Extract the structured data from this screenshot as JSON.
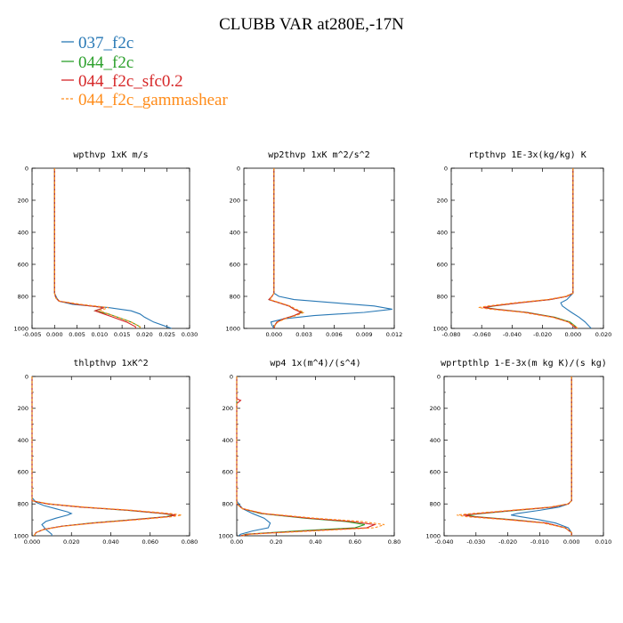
{
  "figure_title": "CLUBB VAR at280E,-17N",
  "legend": [
    {
      "label": "037_f2c",
      "color": "#2878b5",
      "dash": "solid"
    },
    {
      "label": "044_f2c",
      "color": "#2ca02c",
      "dash": "solid"
    },
    {
      "label": "044_f2c_sfc0.2",
      "color": "#d62728",
      "dash": "solid"
    },
    {
      "label": "044_f2c_gammashear",
      "color": "#ff8c1a",
      "dash": "dashed"
    }
  ],
  "chart_data": [
    {
      "type": "line",
      "title": "wpthvp  1xK m/s",
      "xlim": [
        -0.005,
        0.03
      ],
      "ylim": [
        1000,
        0
      ],
      "xticks": [
        "-0.005",
        "0.000",
        "0.005",
        "0.010",
        "0.015",
        "0.020",
        "0.025",
        "0.030"
      ],
      "yticks": [
        "0",
        "200",
        "400",
        "600",
        "800",
        "1000"
      ],
      "series": [
        {
          "name": "037_f2c",
          "y": [
            0,
            780,
            810,
            830,
            850,
            870,
            890,
            910,
            930,
            960,
            990,
            1000
          ],
          "x": [
            0.0,
            0.0,
            0.0005,
            0.001,
            0.004,
            0.012,
            0.017,
            0.019,
            0.02,
            0.022,
            0.025,
            0.026
          ]
        },
        {
          "name": "044_f2c",
          "y": [
            0,
            780,
            810,
            830,
            850,
            870,
            890,
            910,
            930,
            960,
            990,
            1000
          ],
          "x": [
            0.0,
            0.0,
            0.0003,
            0.001,
            0.005,
            0.011,
            0.009,
            0.012,
            0.014,
            0.017,
            0.019,
            0.019
          ]
        },
        {
          "name": "044_f2c_sfc0.2",
          "y": [
            0,
            780,
            810,
            830,
            850,
            870,
            890,
            910,
            930,
            960,
            990,
            1000
          ],
          "x": [
            0.0,
            0.0,
            0.0003,
            0.001,
            0.005,
            0.011,
            0.009,
            0.011,
            0.013,
            0.016,
            0.018,
            0.018
          ]
        },
        {
          "name": "044_f2c_gammashear",
          "y": [
            0,
            780,
            810,
            830,
            850,
            870,
            890,
            910,
            930,
            960,
            990,
            1000
          ],
          "x": [
            0.0,
            0.0,
            0.0003,
            0.0012,
            0.006,
            0.012,
            0.01,
            0.012,
            0.014,
            0.017,
            0.019,
            0.019
          ]
        }
      ]
    },
    {
      "type": "line",
      "title": "wp2thvp  1xK m^2/s^2",
      "xlim": [
        -0.003,
        0.012
      ],
      "ylim": [
        1000,
        0
      ],
      "xticks": [
        "0.000",
        "0.003",
        "0.006",
        "0.009",
        "0.012"
      ],
      "yticks": [
        "0",
        "200",
        "400",
        "600",
        "800",
        "1000"
      ],
      "series": [
        {
          "name": "037_f2c",
          "y": [
            0,
            780,
            800,
            820,
            840,
            860,
            880,
            900,
            920,
            940,
            960,
            980,
            1000
          ],
          "x": [
            0.0,
            0.0,
            0.0005,
            0.002,
            0.006,
            0.01,
            0.0118,
            0.009,
            0.004,
            0.001,
            -0.0003,
            -0.0002,
            0.0
          ]
        },
        {
          "name": "044_f2c",
          "y": [
            0,
            780,
            800,
            820,
            840,
            860,
            880,
            900,
            920,
            940,
            960,
            980,
            1000
          ],
          "x": [
            0.0,
            0.0,
            -0.0002,
            -0.0005,
            0.0005,
            0.0015,
            0.002,
            0.0028,
            0.002,
            0.001,
            0.0003,
            0.0001,
            0.0
          ]
        },
        {
          "name": "044_f2c_sfc0.2",
          "y": [
            0,
            780,
            800,
            820,
            840,
            860,
            880,
            900,
            920,
            940,
            960,
            980,
            1000
          ],
          "x": [
            0.0,
            0.0,
            -0.0002,
            -0.0005,
            0.0005,
            0.0015,
            0.002,
            0.0027,
            0.002,
            0.001,
            0.0003,
            0.0001,
            0.0
          ]
        },
        {
          "name": "044_f2c_gammashear",
          "y": [
            0,
            780,
            800,
            820,
            840,
            860,
            880,
            900,
            920,
            940,
            960,
            980,
            1000
          ],
          "x": [
            0.0,
            0.0,
            -0.0002,
            -0.0004,
            0.0006,
            0.0016,
            0.0022,
            0.003,
            0.0022,
            0.0011,
            0.0004,
            0.0001,
            0.0
          ]
        }
      ]
    },
    {
      "type": "line",
      "title": "rtpthvp  1E-3x(kg/kg) K",
      "xlim": [
        -0.08,
        0.02
      ],
      "ylim": [
        1000,
        0
      ],
      "xticks": [
        "-0.080",
        "-0.060",
        "-0.040",
        "-0.020",
        "0.000",
        "0.020"
      ],
      "yticks": [
        "0",
        "200",
        "400",
        "600",
        "800",
        "1000"
      ],
      "series": [
        {
          "name": "037_f2c",
          "y": [
            0,
            780,
            800,
            820,
            840,
            860,
            880,
            900,
            930,
            960,
            990,
            1000
          ],
          "x": [
            0.0,
            0.0,
            -0.002,
            -0.004,
            -0.008,
            -0.007,
            -0.004,
            -0.001,
            0.004,
            0.008,
            0.011,
            0.012
          ]
        },
        {
          "name": "044_f2c",
          "y": [
            0,
            780,
            800,
            820,
            840,
            860,
            870,
            880,
            900,
            930,
            960,
            990,
            1000
          ],
          "x": [
            0.0,
            0.0,
            -0.004,
            -0.015,
            -0.035,
            -0.052,
            -0.058,
            -0.05,
            -0.03,
            -0.012,
            -0.002,
            0.002,
            0.003
          ]
        },
        {
          "name": "044_f2c_sfc0.2",
          "y": [
            0,
            780,
            800,
            820,
            840,
            860,
            870,
            880,
            900,
            930,
            960,
            990,
            1000
          ],
          "x": [
            0.0,
            0.0,
            -0.004,
            -0.015,
            -0.035,
            -0.053,
            -0.059,
            -0.051,
            -0.031,
            -0.013,
            -0.003,
            0.001,
            0.002
          ]
        },
        {
          "name": "044_f2c_gammashear",
          "y": [
            0,
            780,
            800,
            820,
            840,
            860,
            870,
            880,
            900,
            930,
            960,
            990,
            1000
          ],
          "x": [
            0.0,
            0.0,
            -0.005,
            -0.017,
            -0.038,
            -0.056,
            -0.062,
            -0.054,
            -0.033,
            -0.014,
            -0.003,
            0.002,
            0.003
          ]
        }
      ]
    },
    {
      "type": "line",
      "title": "thlpthvp  1xK^2",
      "xlim": [
        0.0,
        0.08
      ],
      "ylim": [
        1000,
        0
      ],
      "xticks": [
        "0.000",
        "0.020",
        "0.040",
        "0.060",
        "0.080"
      ],
      "yticks": [
        "0",
        "200",
        "400",
        "600",
        "800",
        "1000"
      ],
      "series": [
        {
          "name": "037_f2c",
          "y": [
            0,
            760,
            790,
            810,
            830,
            850,
            860,
            870,
            890,
            910,
            930,
            960,
            990,
            1000
          ],
          "x": [
            0.0,
            0.0,
            0.002,
            0.006,
            0.012,
            0.018,
            0.02,
            0.018,
            0.012,
            0.007,
            0.005,
            0.007,
            0.01,
            0.01
          ]
        },
        {
          "name": "044_f2c",
          "y": [
            0,
            780,
            800,
            820,
            840,
            860,
            870,
            880,
            900,
            920,
            940,
            960,
            980,
            1000
          ],
          "x": [
            0.0,
            0.0,
            0.008,
            0.025,
            0.048,
            0.066,
            0.072,
            0.068,
            0.05,
            0.03,
            0.015,
            0.006,
            0.002,
            0.001
          ]
        },
        {
          "name": "044_f2c_sfc0.2",
          "y": [
            0,
            780,
            800,
            820,
            840,
            860,
            870,
            880,
            900,
            920,
            940,
            960,
            980,
            1000
          ],
          "x": [
            0.0,
            0.0,
            0.008,
            0.025,
            0.049,
            0.067,
            0.073,
            0.069,
            0.051,
            0.031,
            0.015,
            0.006,
            0.002,
            0.001
          ]
        },
        {
          "name": "044_f2c_gammashear",
          "y": [
            0,
            780,
            800,
            820,
            840,
            860,
            870,
            880,
            900,
            920,
            940,
            960,
            980,
            1000
          ],
          "x": [
            0.0,
            0.0,
            0.009,
            0.027,
            0.051,
            0.07,
            0.076,
            0.071,
            0.053,
            0.032,
            0.016,
            0.006,
            0.002,
            0.001
          ]
        }
      ]
    },
    {
      "type": "line",
      "title": "wp4  1x(m^4)/(s^4)",
      "xlim": [
        0.0,
        0.8
      ],
      "ylim": [
        1000,
        0
      ],
      "xticks": [
        "0.00",
        "0.20",
        "0.40",
        "0.60",
        "0.80"
      ],
      "yticks": [
        "0",
        "200",
        "400",
        "600",
        "800",
        "1000"
      ],
      "series": [
        {
          "name": "037_f2c",
          "y": [
            0,
            780,
            800,
            830,
            860,
            890,
            920,
            950,
            970,
            990,
            1000
          ],
          "x": [
            0.0,
            0.0,
            0.01,
            0.03,
            0.08,
            0.14,
            0.17,
            0.16,
            0.08,
            0.02,
            0.01
          ]
        },
        {
          "name": "044_f2c",
          "y": [
            0,
            800,
            830,
            860,
            890,
            910,
            930,
            950,
            970,
            990,
            1000
          ],
          "x": [
            0.0,
            0.0,
            0.03,
            0.12,
            0.35,
            0.55,
            0.65,
            0.6,
            0.3,
            0.05,
            0.02
          ]
        },
        {
          "name": "044_f2c_sfc0.2",
          "y": [
            0,
            140,
            150,
            160,
            170,
            800,
            830,
            860,
            890,
            910,
            930,
            950,
            970,
            990,
            1000
          ],
          "x": [
            0.0,
            0.0,
            0.02,
            0.01,
            0.0,
            0.0,
            0.03,
            0.13,
            0.37,
            0.58,
            0.7,
            0.66,
            0.35,
            0.06,
            0.02
          ]
        },
        {
          "name": "044_f2c_gammashear",
          "y": [
            0,
            800,
            830,
            860,
            890,
            910,
            930,
            950,
            970,
            990,
            1000
          ],
          "x": [
            0.0,
            0.0,
            0.03,
            0.14,
            0.4,
            0.63,
            0.75,
            0.7,
            0.38,
            0.07,
            0.03
          ]
        }
      ]
    },
    {
      "type": "line",
      "title": "wprtpthlp  1-E-3x(m kg K)/(s kg)",
      "xlim": [
        -0.04,
        0.01
      ],
      "ylim": [
        1000,
        0
      ],
      "xticks": [
        "-0.040",
        "-0.030",
        "-0.020",
        "-0.010",
        "0.000",
        "0.010"
      ],
      "yticks": [
        "0",
        "200",
        "400",
        "600",
        "800",
        "1000"
      ],
      "series": [
        {
          "name": "037_f2c",
          "y": [
            0,
            780,
            800,
            820,
            840,
            860,
            870,
            880,
            900,
            920,
            950,
            980,
            1000
          ],
          "x": [
            0.0,
            0.0,
            -0.001,
            -0.004,
            -0.01,
            -0.017,
            -0.019,
            -0.016,
            -0.01,
            -0.005,
            -0.001,
            0.0,
            0.0
          ]
        },
        {
          "name": "044_f2c",
          "y": [
            0,
            780,
            800,
            820,
            840,
            860,
            870,
            880,
            900,
            920,
            950,
            980,
            1000
          ],
          "x": [
            0.0,
            0.0,
            -0.001,
            -0.006,
            -0.017,
            -0.028,
            -0.033,
            -0.03,
            -0.018,
            -0.008,
            -0.002,
            0.0,
            0.0
          ]
        },
        {
          "name": "044_f2c_sfc0.2",
          "y": [
            0,
            780,
            800,
            820,
            840,
            860,
            870,
            880,
            900,
            920,
            950,
            980,
            1000
          ],
          "x": [
            0.0,
            0.0,
            -0.001,
            -0.006,
            -0.018,
            -0.029,
            -0.034,
            -0.031,
            -0.019,
            -0.008,
            -0.002,
            0.0,
            0.0
          ]
        },
        {
          "name": "044_f2c_gammashear",
          "y": [
            0,
            780,
            800,
            820,
            840,
            860,
            870,
            880,
            900,
            920,
            950,
            980,
            1000
          ],
          "x": [
            0.0,
            0.0,
            -0.001,
            -0.007,
            -0.019,
            -0.031,
            -0.036,
            -0.033,
            -0.02,
            -0.009,
            -0.002,
            0.0,
            0.0
          ]
        }
      ]
    }
  ]
}
